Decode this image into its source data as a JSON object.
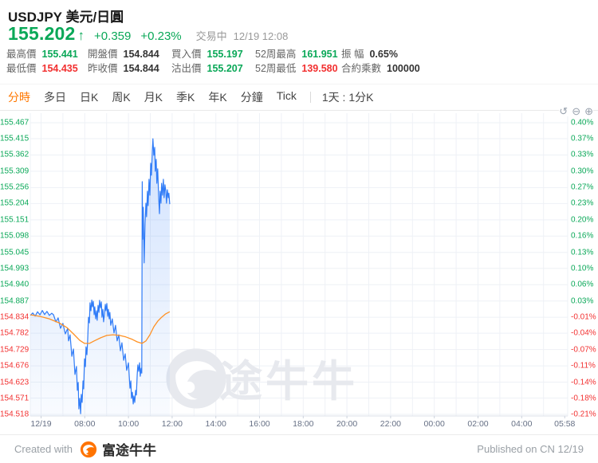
{
  "header": {
    "title": "USDJPY 美元/日圓",
    "price": "155.202",
    "arrow": "↑",
    "change": "+0.359",
    "change_pct": "+0.23%",
    "status": "交易中",
    "timestamp": "12/19 12:08"
  },
  "stats": {
    "rows": [
      [
        {
          "label": "最高價",
          "value": "155.441",
          "color": "green"
        },
        {
          "label": "開盤價",
          "value": "154.844",
          "color": "dark"
        },
        {
          "label": "買入價",
          "value": "155.197",
          "color": "green"
        },
        {
          "label": "52周最高",
          "value": "161.951",
          "color": "green"
        },
        {
          "label": "振 幅",
          "value": "0.65%",
          "color": "dark"
        }
      ],
      [
        {
          "label": "最低價",
          "value": "154.435",
          "color": "red"
        },
        {
          "label": "昨收價",
          "value": "154.844",
          "color": "dark"
        },
        {
          "label": "沽出價",
          "value": "155.207",
          "color": "green"
        },
        {
          "label": "52周最低",
          "value": "139.580",
          "color": "red"
        },
        {
          "label": "合約乘數",
          "value": "100000",
          "color": "dark"
        }
      ]
    ]
  },
  "tabs": {
    "items": [
      {
        "label": "分時",
        "active": true
      },
      {
        "label": "多日",
        "active": false
      },
      {
        "label": "日K",
        "active": false
      },
      {
        "label": "周K",
        "active": false
      },
      {
        "label": "月K",
        "active": false
      },
      {
        "label": "季K",
        "active": false
      },
      {
        "label": "年K",
        "active": false
      },
      {
        "label": "分鐘",
        "active": false
      },
      {
        "label": "Tick",
        "active": false
      }
    ],
    "period": "1天 : 1分K"
  },
  "chart_tools": {
    "reset": "↺",
    "zoom_out": "⊖",
    "zoom_in": "⊕"
  },
  "watermark_text": "富途牛牛",
  "footer": {
    "created_with": "Created with",
    "brand": "富途牛牛",
    "published": "Published on CN 12/19"
  },
  "colors": {
    "up": "#0aa858",
    "down": "#f23030",
    "price_line": "#2f7bf7",
    "avg_line": "#ff9123",
    "accent": "#ff7700",
    "grid": "#eef1f6",
    "axis": "#dde2ea"
  },
  "chart_data": {
    "type": "line",
    "title": "USDJPY 分時 (1天 : 1分K)",
    "legend": "off",
    "grid": "on",
    "session_start_hour": 5.5,
    "session_end_hour": 29.97,
    "y_axis": {
      "prev_close": 154.844,
      "p_top": 155.467,
      "p_bottom": 154.518,
      "left_labels": [
        "155.467",
        "155.415",
        "155.362",
        "155.309",
        "155.256",
        "155.204",
        "155.151",
        "155.098",
        "155.045",
        "154.993",
        "154.940",
        "154.887",
        "154.834",
        "154.782",
        "154.729",
        "154.676",
        "154.623",
        "154.571",
        "154.518"
      ],
      "right_labels": [
        "0.40%",
        "0.37%",
        "0.33%",
        "0.30%",
        "0.27%",
        "0.23%",
        "0.20%",
        "0.16%",
        "0.13%",
        "0.10%",
        "0.06%",
        "0.03%",
        "-0.01%",
        "-0.04%",
        "-0.07%",
        "-0.11%",
        "-0.14%",
        "-0.18%",
        "-0.21%"
      ]
    },
    "x_axis": {
      "labels": [
        {
          "t": 6,
          "text": "12/19"
        },
        {
          "t": 8,
          "text": "08:00"
        },
        {
          "t": 10,
          "text": "10:00"
        },
        {
          "t": 12,
          "text": "12:00"
        },
        {
          "t": 14,
          "text": "14:00"
        },
        {
          "t": 16,
          "text": "16:00"
        },
        {
          "t": 18,
          "text": "18:00"
        },
        {
          "t": 20,
          "text": "20:00"
        },
        {
          "t": 22,
          "text": "22:00"
        },
        {
          "t": 24,
          "text": "00:00"
        },
        {
          "t": 26,
          "text": "02:00"
        },
        {
          "t": 28,
          "text": "04:00"
        },
        {
          "t": 29.97,
          "text": "05:58"
        }
      ]
    },
    "series": [
      {
        "name": "price-line",
        "points": [
          [
            5.51,
            154.84
          ],
          [
            5.62,
            154.848
          ],
          [
            5.73,
            154.838
          ],
          [
            5.84,
            154.852
          ],
          [
            5.95,
            154.842
          ],
          [
            6.06,
            154.856
          ],
          [
            6.16,
            154.843
          ],
          [
            6.27,
            154.853
          ],
          [
            6.38,
            154.84
          ],
          [
            6.49,
            154.847
          ],
          [
            6.57,
            154.842
          ],
          [
            6.68,
            154.819
          ],
          [
            6.78,
            154.832
          ],
          [
            6.89,
            154.798
          ],
          [
            7.0,
            154.814
          ],
          [
            7.11,
            154.78
          ],
          [
            7.22,
            154.798
          ],
          [
            7.26,
            154.757
          ],
          [
            7.33,
            154.777
          ],
          [
            7.41,
            154.707
          ],
          [
            7.48,
            154.731
          ],
          [
            7.55,
            154.648
          ],
          [
            7.62,
            154.674
          ],
          [
            7.66,
            154.596
          ],
          [
            7.7,
            154.622
          ],
          [
            7.73,
            154.536
          ],
          [
            7.77,
            154.57
          ],
          [
            7.81,
            154.52
          ],
          [
            7.84,
            154.583
          ],
          [
            7.88,
            154.557
          ],
          [
            7.92,
            154.627
          ],
          [
            7.95,
            154.601
          ],
          [
            7.99,
            154.699
          ],
          [
            8.03,
            154.673
          ],
          [
            8.06,
            154.738
          ],
          [
            8.1,
            154.712
          ],
          [
            8.13,
            154.757
          ],
          [
            8.17,
            154.834
          ],
          [
            8.21,
            154.816
          ],
          [
            8.24,
            154.881
          ],
          [
            8.28,
            154.855
          ],
          [
            8.32,
            154.89
          ],
          [
            8.35,
            154.868
          ],
          [
            8.39,
            154.886
          ],
          [
            8.43,
            154.842
          ],
          [
            8.46,
            154.868
          ],
          [
            8.5,
            154.829
          ],
          [
            8.54,
            154.855
          ],
          [
            8.57,
            154.824
          ],
          [
            8.61,
            154.873
          ],
          [
            8.65,
            154.85
          ],
          [
            8.68,
            154.889
          ],
          [
            8.72,
            154.865
          ],
          [
            8.76,
            154.884
          ],
          [
            8.79,
            154.834
          ],
          [
            8.83,
            154.86
          ],
          [
            8.86,
            154.819
          ],
          [
            8.9,
            154.845
          ],
          [
            8.94,
            154.876
          ],
          [
            8.97,
            154.855
          ],
          [
            9.01,
            154.879
          ],
          [
            9.05,
            154.837
          ],
          [
            9.08,
            154.86
          ],
          [
            9.12,
            154.829
          ],
          [
            9.15,
            154.85
          ],
          [
            9.19,
            154.808
          ],
          [
            9.26,
            154.829
          ],
          [
            9.34,
            154.783
          ],
          [
            9.41,
            154.808
          ],
          [
            9.48,
            154.757
          ],
          [
            9.56,
            154.777
          ],
          [
            9.63,
            154.725
          ],
          [
            9.7,
            154.751
          ],
          [
            9.78,
            154.694
          ],
          [
            9.85,
            154.715
          ],
          [
            9.92,
            154.661
          ],
          [
            10.0,
            154.686
          ],
          [
            10.07,
            154.603
          ],
          [
            10.11,
            154.627
          ],
          [
            10.14,
            154.57
          ],
          [
            10.18,
            154.59
          ],
          [
            10.22,
            154.552
          ],
          [
            10.25,
            154.578
          ],
          [
            10.29,
            154.557
          ],
          [
            10.33,
            154.596
          ],
          [
            10.36,
            154.581
          ],
          [
            10.4,
            154.648
          ],
          [
            10.43,
            154.679
          ],
          [
            10.47,
            154.658
          ],
          [
            10.51,
            154.686
          ],
          [
            10.54,
            154.642
          ],
          [
            10.58,
            154.668
          ],
          [
            10.61,
            154.652
          ],
          [
            10.63,
            155.275
          ],
          [
            10.65,
            155.088
          ],
          [
            10.68,
            155.192
          ],
          [
            10.72,
            155.011
          ],
          [
            10.76,
            155.14
          ],
          [
            10.8,
            155.205
          ],
          [
            10.83,
            155.161
          ],
          [
            10.87,
            155.244
          ],
          [
            10.9,
            155.197
          ],
          [
            10.94,
            155.283
          ],
          [
            10.98,
            155.231
          ],
          [
            11.02,
            155.335
          ],
          [
            11.05,
            155.296
          ],
          [
            11.09,
            155.374
          ],
          [
            11.12,
            155.415
          ],
          [
            11.16,
            155.361
          ],
          [
            11.2,
            155.387
          ],
          [
            11.23,
            155.309
          ],
          [
            11.27,
            155.348
          ],
          [
            11.3,
            155.27
          ],
          [
            11.34,
            155.317
          ],
          [
            11.38,
            155.231
          ],
          [
            11.42,
            155.171
          ],
          [
            11.45,
            155.244
          ],
          [
            11.49,
            155.205
          ],
          [
            11.52,
            155.27
          ],
          [
            11.56,
            155.231
          ],
          [
            11.6,
            155.283
          ],
          [
            11.63,
            155.223
          ],
          [
            11.67,
            155.265
          ],
          [
            11.71,
            155.244
          ],
          [
            11.74,
            155.205
          ],
          [
            11.78,
            155.249
          ],
          [
            11.82,
            155.223
          ],
          [
            11.85,
            155.238
          ],
          [
            11.89,
            155.202
          ]
        ]
      },
      {
        "name": "average-line",
        "points": [
          [
            5.51,
            154.842
          ],
          [
            5.95,
            154.837
          ],
          [
            6.38,
            154.829
          ],
          [
            6.82,
            154.816
          ],
          [
            7.19,
            154.8
          ],
          [
            7.48,
            154.78
          ],
          [
            7.77,
            154.759
          ],
          [
            7.99,
            154.749
          ],
          [
            8.21,
            154.749
          ],
          [
            8.43,
            154.757
          ],
          [
            8.72,
            154.767
          ],
          [
            9.01,
            154.775
          ],
          [
            9.3,
            154.777
          ],
          [
            9.59,
            154.775
          ],
          [
            9.88,
            154.77
          ],
          [
            10.18,
            154.762
          ],
          [
            10.4,
            154.754
          ],
          [
            10.62,
            154.749
          ],
          [
            10.8,
            154.757
          ],
          [
            10.98,
            154.777
          ],
          [
            11.16,
            154.803
          ],
          [
            11.34,
            154.821
          ],
          [
            11.52,
            154.834
          ],
          [
            11.7,
            154.845
          ],
          [
            11.89,
            154.852
          ]
        ]
      }
    ]
  }
}
